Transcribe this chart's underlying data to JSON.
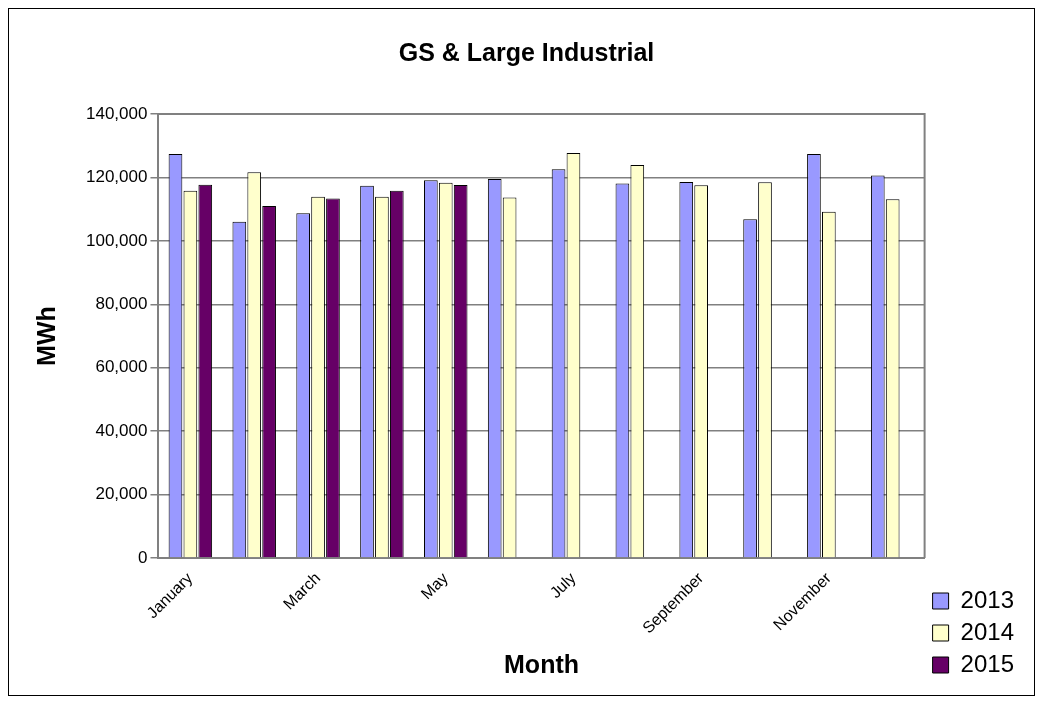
{
  "chart_data": {
    "type": "bar",
    "title": "GS & Large Industrial",
    "xlabel": "Month",
    "ylabel": "MWh",
    "categories": [
      "January",
      null,
      "March",
      null,
      "May",
      null,
      "July",
      null,
      "September",
      null,
      "November",
      null
    ],
    "series": [
      {
        "name": "2013",
        "color": "#9999ff",
        "values": [
          127400,
          106000,
          108700,
          117400,
          119100,
          119500,
          122600,
          118100,
          118600,
          106800,
          127400,
          120600
        ]
      },
      {
        "name": "2014",
        "color": "#ffffcc",
        "values": [
          115800,
          121600,
          113900,
          113900,
          118300,
          113700,
          127700,
          123900,
          117500,
          118500,
          109200,
          113100
        ]
      },
      {
        "name": "2015",
        "color": "#660066",
        "values": [
          117700,
          111000,
          113400,
          115800,
          117600,
          null,
          null,
          null,
          null,
          null,
          null,
          null
        ]
      }
    ],
    "ylim": [
      0,
      140000
    ],
    "yticks": [
      0,
      {
        "value": 20000,
        "label": "20,000"
      },
      {
        "value": 40000,
        "label": "40,000"
      },
      {
        "value": 60000,
        "label": "60,000"
      },
      {
        "value": 80000,
        "label": "80,000"
      },
      {
        "value": 100000,
        "label": "100,000"
      },
      {
        "value": 120000,
        "label": "120,000"
      },
      {
        "value": 140000,
        "label": "140,000"
      }
    ],
    "grid": "y",
    "legend": "bottom right"
  }
}
